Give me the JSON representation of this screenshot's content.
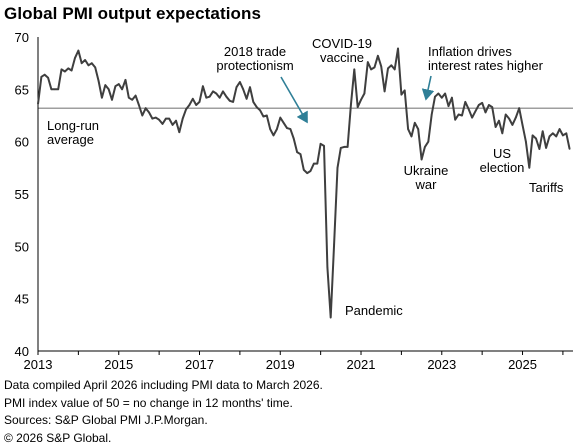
{
  "title": "Global PMI output expectations",
  "colors": {
    "series": "#3f3f3f",
    "average": "#7f7f7f",
    "arrow": "#2f7f97",
    "axis": "#000000"
  },
  "chart_data": {
    "type": "line",
    "title": "Global PMI output expectations",
    "xlabel": "",
    "ylabel": "",
    "xlim": [
      2013.0,
      2026.25
    ],
    "ylim": [
      40,
      70
    ],
    "yticks": [
      40,
      45,
      50,
      55,
      60,
      65,
      70
    ],
    "xticks": [
      2013,
      2015,
      2017,
      2019,
      2021,
      2023,
      2025
    ],
    "xtick_labels": [
      "2013",
      "2015",
      "2017",
      "2019",
      "2021",
      "2023",
      "2025"
    ],
    "grid": false,
    "reference_line": {
      "label": "Long-run average",
      "value": 63.2
    },
    "series": [
      {
        "values": [
          [
            2013.0,
            63.6
          ],
          [
            2013.083,
            66.2
          ],
          [
            2013.167,
            66.4
          ],
          [
            2013.25,
            66.1
          ],
          [
            2013.333,
            65.0
          ],
          [
            2013.417,
            65.0
          ],
          [
            2013.5,
            65.0
          ],
          [
            2013.583,
            66.9
          ],
          [
            2013.667,
            66.7
          ],
          [
            2013.75,
            67.0
          ],
          [
            2013.833,
            66.8
          ],
          [
            2013.917,
            68.0
          ],
          [
            2014.0,
            68.7
          ],
          [
            2014.083,
            67.5
          ],
          [
            2014.167,
            67.8
          ],
          [
            2014.25,
            67.3
          ],
          [
            2014.333,
            67.5
          ],
          [
            2014.417,
            67.1
          ],
          [
            2014.5,
            65.8
          ],
          [
            2014.583,
            64.2
          ],
          [
            2014.667,
            65.4
          ],
          [
            2014.75,
            65.0
          ],
          [
            2014.833,
            64.0
          ],
          [
            2014.917,
            65.3
          ],
          [
            2015.0,
            65.5
          ],
          [
            2015.083,
            65.0
          ],
          [
            2015.167,
            65.9
          ],
          [
            2015.25,
            64.2
          ],
          [
            2015.333,
            64.0
          ],
          [
            2015.417,
            64.4
          ],
          [
            2015.5,
            63.5
          ],
          [
            2015.583,
            62.5
          ],
          [
            2015.667,
            63.2
          ],
          [
            2015.75,
            62.8
          ],
          [
            2015.833,
            62.2
          ],
          [
            2015.917,
            62.3
          ],
          [
            2016.0,
            62.1
          ],
          [
            2016.083,
            61.7
          ],
          [
            2016.167,
            62.2
          ],
          [
            2016.25,
            62.2
          ],
          [
            2016.333,
            61.6
          ],
          [
            2016.417,
            62.0
          ],
          [
            2016.5,
            60.9
          ],
          [
            2016.583,
            62.2
          ],
          [
            2016.667,
            63.1
          ],
          [
            2016.75,
            63.5
          ],
          [
            2016.833,
            64.1
          ],
          [
            2016.917,
            63.5
          ],
          [
            2017.0,
            63.8
          ],
          [
            2017.083,
            65.3
          ],
          [
            2017.167,
            64.2
          ],
          [
            2017.25,
            64.3
          ],
          [
            2017.333,
            64.8
          ],
          [
            2017.417,
            64.6
          ],
          [
            2017.5,
            64.2
          ],
          [
            2017.583,
            64.8
          ],
          [
            2017.667,
            64.3
          ],
          [
            2017.75,
            63.9
          ],
          [
            2017.833,
            63.8
          ],
          [
            2017.917,
            65.2
          ],
          [
            2018.0,
            65.7
          ],
          [
            2018.083,
            65.0
          ],
          [
            2018.167,
            64.1
          ],
          [
            2018.25,
            65.2
          ],
          [
            2018.333,
            63.8
          ],
          [
            2018.417,
            63.3
          ],
          [
            2018.5,
            63.0
          ],
          [
            2018.583,
            62.4
          ],
          [
            2018.667,
            62.5
          ],
          [
            2018.75,
            61.2
          ],
          [
            2018.833,
            60.6
          ],
          [
            2018.917,
            61.2
          ],
          [
            2019.0,
            62.3
          ],
          [
            2019.083,
            61.8
          ],
          [
            2019.167,
            61.3
          ],
          [
            2019.25,
            61.2
          ],
          [
            2019.333,
            60.3
          ],
          [
            2019.417,
            59.0
          ],
          [
            2019.5,
            58.8
          ],
          [
            2019.583,
            57.3
          ],
          [
            2019.667,
            57.0
          ],
          [
            2019.75,
            57.2
          ],
          [
            2019.833,
            57.9
          ],
          [
            2019.917,
            57.9
          ],
          [
            2020.0,
            59.8
          ],
          [
            2020.083,
            59.6
          ],
          [
            2020.167,
            48.0
          ],
          [
            2020.25,
            43.2
          ],
          [
            2020.333,
            50.2
          ],
          [
            2020.417,
            57.5
          ],
          [
            2020.5,
            59.4
          ],
          [
            2020.583,
            59.5
          ],
          [
            2020.667,
            59.5
          ],
          [
            2020.75,
            63.5
          ],
          [
            2020.833,
            66.9
          ],
          [
            2020.917,
            63.3
          ],
          [
            2021.0,
            64.0
          ],
          [
            2021.083,
            64.6
          ],
          [
            2021.167,
            67.6
          ],
          [
            2021.25,
            66.9
          ],
          [
            2021.333,
            67.1
          ],
          [
            2021.417,
            68.2
          ],
          [
            2021.5,
            67.2
          ],
          [
            2021.583,
            64.8
          ],
          [
            2021.667,
            67.0
          ],
          [
            2021.75,
            67.3
          ],
          [
            2021.833,
            66.9
          ],
          [
            2021.917,
            68.9
          ],
          [
            2022.0,
            64.5
          ],
          [
            2022.083,
            64.9
          ],
          [
            2022.167,
            61.2
          ],
          [
            2022.25,
            60.5
          ],
          [
            2022.333,
            61.8
          ],
          [
            2022.417,
            61.2
          ],
          [
            2022.5,
            58.3
          ],
          [
            2022.583,
            59.5
          ],
          [
            2022.667,
            60.0
          ],
          [
            2022.75,
            62.6
          ],
          [
            2022.833,
            64.3
          ],
          [
            2022.917,
            64.6
          ],
          [
            2023.0,
            64.2
          ],
          [
            2023.083,
            64.6
          ],
          [
            2023.167,
            63.4
          ],
          [
            2023.25,
            64.2
          ],
          [
            2023.333,
            62.1
          ],
          [
            2023.417,
            62.6
          ],
          [
            2023.5,
            62.5
          ],
          [
            2023.583,
            63.8
          ],
          [
            2023.667,
            63.1
          ],
          [
            2023.75,
            62.3
          ],
          [
            2023.833,
            62.9
          ],
          [
            2023.917,
            63.5
          ],
          [
            2024.0,
            63.7
          ],
          [
            2024.083,
            62.8
          ],
          [
            2024.167,
            63.5
          ],
          [
            2024.25,
            63.3
          ],
          [
            2024.333,
            61.4
          ],
          [
            2024.417,
            62.0
          ],
          [
            2024.5,
            60.8
          ],
          [
            2024.583,
            62.6
          ],
          [
            2024.667,
            62.2
          ],
          [
            2024.75,
            61.6
          ],
          [
            2024.833,
            62.3
          ],
          [
            2024.917,
            63.2
          ],
          [
            2025.0,
            61.6
          ],
          [
            2025.083,
            60.0
          ],
          [
            2025.167,
            57.5
          ],
          [
            2025.25,
            60.6
          ],
          [
            2025.333,
            60.3
          ],
          [
            2025.417,
            59.3
          ],
          [
            2025.5,
            61.0
          ],
          [
            2025.583,
            59.4
          ],
          [
            2025.667,
            60.5
          ],
          [
            2025.75,
            60.8
          ],
          [
            2025.833,
            60.5
          ],
          [
            2025.917,
            61.2
          ],
          [
            2026.0,
            60.6
          ],
          [
            2026.083,
            60.8
          ],
          [
            2026.167,
            59.3
          ]
        ]
      }
    ],
    "annotations": [
      {
        "lines": [
          "2018 trade",
          "protectionism"
        ]
      },
      {
        "lines": [
          "COVID-19",
          "vaccine"
        ]
      },
      {
        "lines": [
          "Inflation drives",
          "interest rates higher"
        ]
      },
      {
        "lines": [
          "Long-run",
          "average"
        ]
      },
      {
        "lines": [
          "Ukraine",
          "war"
        ]
      },
      {
        "lines": [
          "US",
          "election"
        ]
      },
      {
        "lines": [
          "Tariffs"
        ]
      },
      {
        "lines": [
          "Pandemic"
        ]
      }
    ]
  },
  "footnotes": [
    "Data compiled April 2026 including PMI data to March 2026.",
    "PMI index value of 50 = no change in 12 months' time.",
    "Sources: S&P Global PMI J.P.Morgan.",
    "© 2026 S&P Global."
  ]
}
